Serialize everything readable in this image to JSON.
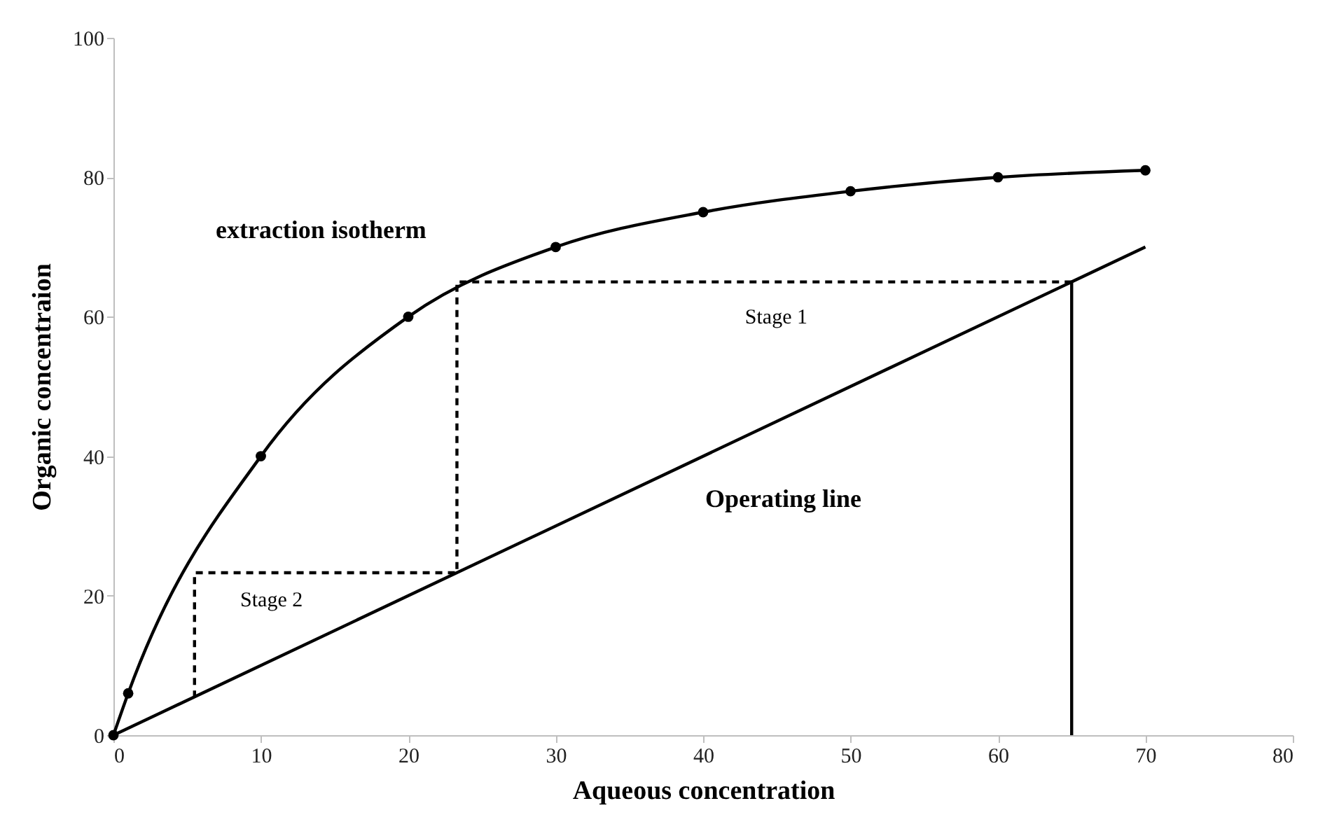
{
  "chart_data": {
    "type": "line",
    "xlabel": "Aqueous concentration",
    "ylabel": "Organic concentraion",
    "xlim": [
      0,
      80
    ],
    "xticks": [
      0,
      10,
      20,
      30,
      40,
      50,
      60,
      70,
      80
    ],
    "ylim": [
      0,
      100
    ],
    "yticks": [
      0,
      20,
      40,
      60,
      80,
      100
    ],
    "grid": false,
    "series": [
      {
        "color": "#000000",
        "marker": "circle",
        "line_style": "solid",
        "x": [
          0,
          1,
          10,
          20,
          30,
          40,
          50,
          60,
          70
        ],
        "values": [
          0,
          6,
          40,
          60,
          70,
          75,
          78,
          80,
          81
        ]
      },
      {
        "color": "#000000",
        "marker": "none",
        "line_style": "solid",
        "x": [
          0,
          70
        ],
        "values": [
          0,
          70
        ]
      },
      {
        "color": "#000000",
        "marker": "none",
        "line_style": "dashed",
        "x": [
          65,
          23.3,
          23.3,
          5.5,
          5.5
        ],
        "values": [
          65,
          65,
          23.3,
          23.3,
          5.5
        ]
      },
      {
        "color": "#000000",
        "marker": "none",
        "line_style": "solid",
        "x": [
          65,
          65
        ],
        "values": [
          0,
          65
        ]
      }
    ],
    "annotations": [
      "extraction isotherm",
      "Stage 1",
      "Operating line",
      "Stage 2"
    ]
  }
}
